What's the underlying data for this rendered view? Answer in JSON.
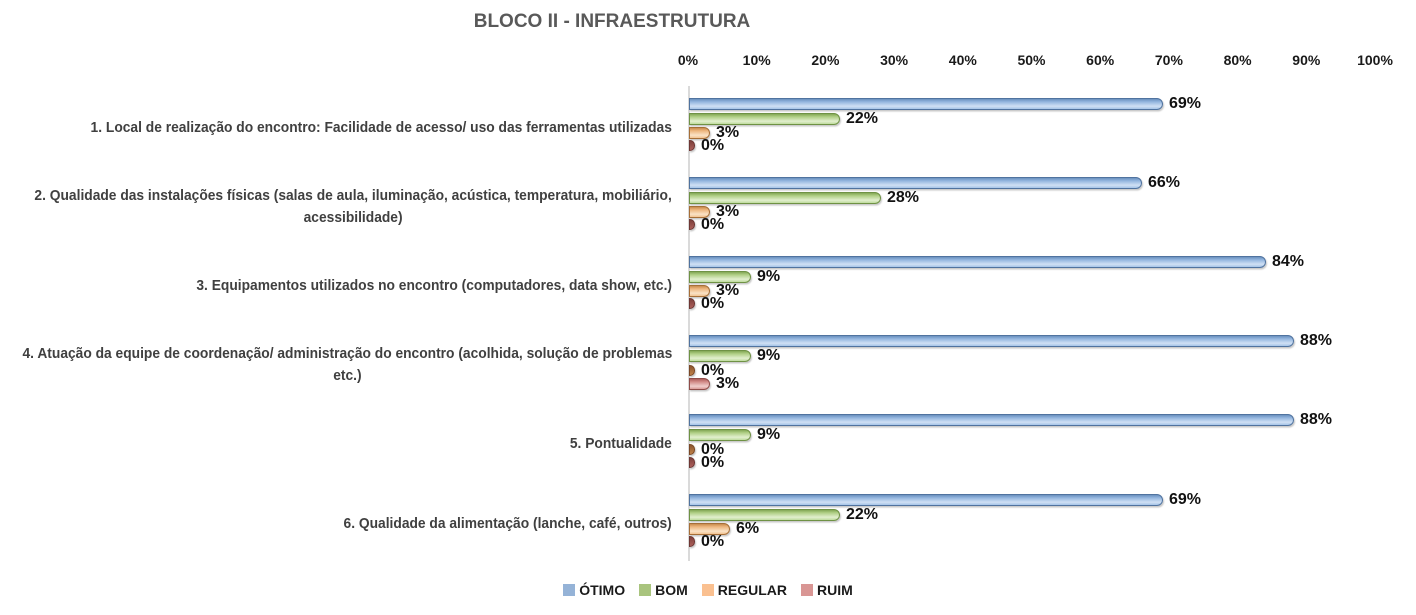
{
  "title": "BLOCO II - INFRAESTRUTURA",
  "chart_data": {
    "type": "bar",
    "orientation": "horizontal",
    "title": "BLOCO II - INFRAESTRUTURA",
    "xlabel": "",
    "ylabel": "",
    "xlim": [
      0,
      100
    ],
    "x_axis_ticks": [
      "0%",
      "10%",
      "20%",
      "30%",
      "40%",
      "50%",
      "60%",
      "70%",
      "80%",
      "90%",
      "100%"
    ],
    "grid": false,
    "legend_position": "bottom",
    "data_label_suffix": "%",
    "categories": [
      "1. Local de realização do encontro: Facilidade de acesso/ uso das ferramentas utilizadas",
      "2. Qualidade das instalações físicas (salas de aula, iluminação, acústica, temperatura, mobiliário,\nacessibilidade)",
      "3. Equipamentos utilizados no encontro (computadores, data show, etc.)",
      "4. Atuação da equipe de coordenação/ administração do encontro (acolhida, solução de problemas\netc.)",
      "5. Pontualidade",
      "6. Qualidade da alimentação (lanche, café, outros)"
    ],
    "series": [
      {
        "key": "otimo",
        "name": "ÓTIMO",
        "color": "#95B3D7",
        "values": [
          69,
          66,
          84,
          88,
          88,
          69
        ]
      },
      {
        "key": "bom",
        "name": "BOM",
        "color": "#A9C47E",
        "values": [
          22,
          28,
          9,
          9,
          9,
          22
        ]
      },
      {
        "key": "regular",
        "name": "REGULAR",
        "color": "#FAC090",
        "values": [
          3,
          3,
          3,
          0,
          0,
          6
        ]
      },
      {
        "key": "ruim",
        "name": "RUIM",
        "color": "#D99694",
        "values": [
          0,
          0,
          0,
          3,
          0,
          0
        ]
      }
    ]
  }
}
